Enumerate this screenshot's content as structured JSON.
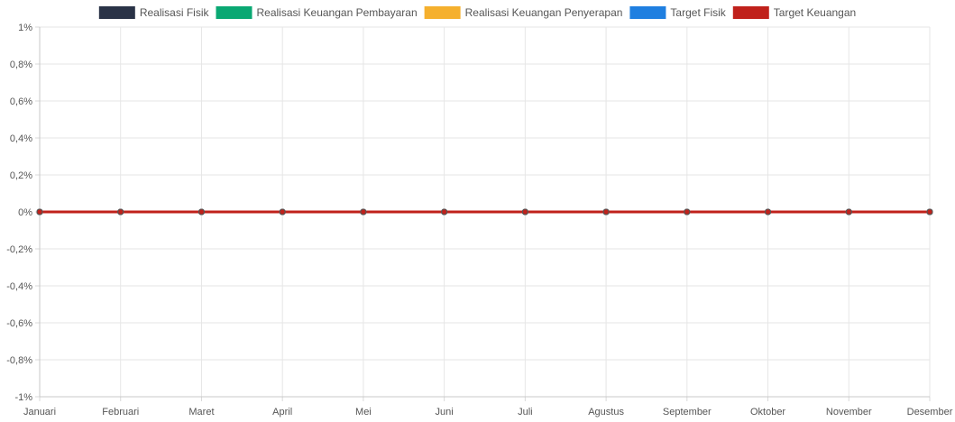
{
  "chart_data": {
    "type": "line",
    "categories": [
      "Januari",
      "Februari",
      "Maret",
      "April",
      "Mei",
      "Juni",
      "Juli",
      "Agustus",
      "September",
      "Oktober",
      "November",
      "Desember"
    ],
    "y_ticks": [
      "1%",
      "0,8%",
      "0,6%",
      "0,4%",
      "0,2%",
      "0%",
      "-0,2%",
      "-0,4%",
      "-0,6%",
      "-0,8%",
      "-1%"
    ],
    "ylim": [
      -1,
      1
    ],
    "grid": true,
    "legend_position": "top-center",
    "series": [
      {
        "name": "Realisasi Fisik",
        "color": "#2a3347",
        "values": [
          0,
          0,
          0,
          0,
          0,
          0,
          0,
          0,
          0,
          0,
          0,
          0
        ]
      },
      {
        "name": "Realisasi Keuangan Pembayaran",
        "color": "#0aa873",
        "values": [
          0,
          0,
          0,
          0,
          0,
          0,
          0,
          0,
          0,
          0,
          0,
          0
        ]
      },
      {
        "name": "Realisasi Keuangan Penyerapan",
        "color": "#f5b02e",
        "values": [
          0,
          0,
          0,
          0,
          0,
          0,
          0,
          0,
          0,
          0,
          0,
          0
        ]
      },
      {
        "name": "Target Fisik",
        "color": "#1f7fe0",
        "values": [
          0,
          0,
          0,
          0,
          0,
          0,
          0,
          0,
          0,
          0,
          0,
          0
        ]
      },
      {
        "name": "Target Keuangan",
        "color": "#c0211b",
        "values": [
          0,
          0,
          0,
          0,
          0,
          0,
          0,
          0,
          0,
          0,
          0,
          0
        ]
      }
    ]
  }
}
